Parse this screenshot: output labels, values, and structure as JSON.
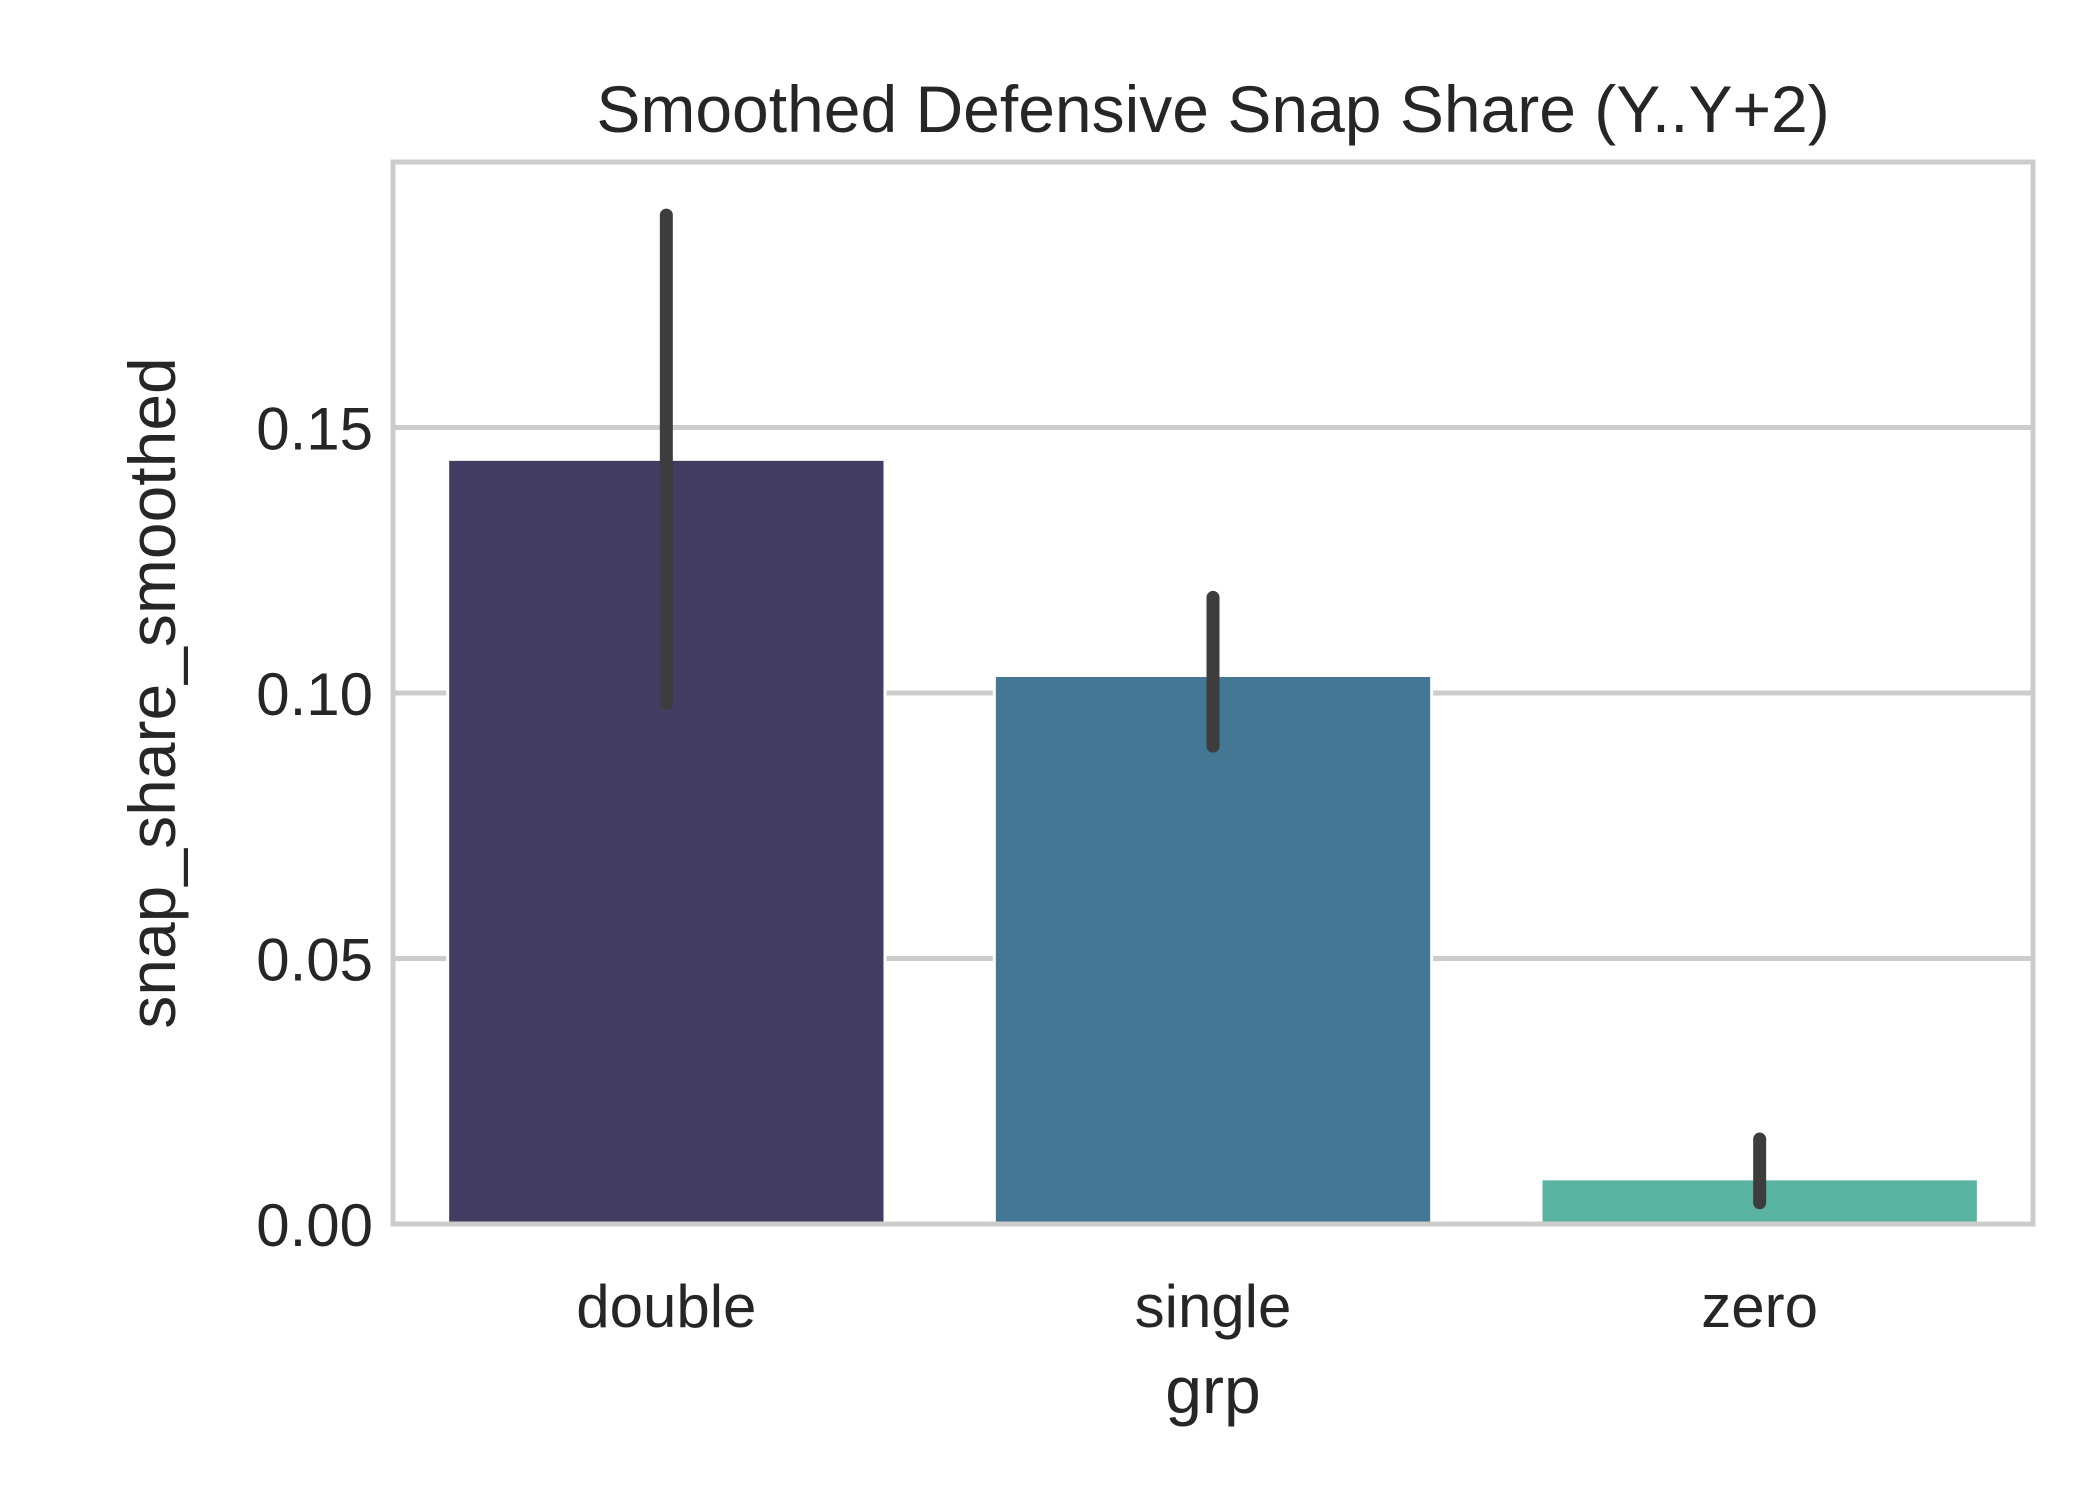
{
  "chart_data": {
    "type": "bar",
    "title": "Smoothed Defensive Snap Share (Y..Y+2)",
    "xlabel": "grp",
    "ylabel": "snap_share_smoothed",
    "categories": [
      "double",
      "single",
      "zero"
    ],
    "values": [
      0.144,
      0.1033,
      0.0085
    ],
    "error_bars": [
      {
        "low": 0.098,
        "high": 0.19
      },
      {
        "low": 0.09,
        "high": 0.118
      },
      {
        "low": 0.004,
        "high": 0.016
      }
    ],
    "colors": [
      "#433c63",
      "#447794",
      "#58b3a1"
    ],
    "error_bar_color": "#3d3d3d",
    "ylim": [
      0,
      0.2
    ],
    "yticks": [
      0.0,
      0.05,
      0.1,
      0.15
    ],
    "ytick_labels": [
      "0.00",
      "0.05",
      "0.10",
      "0.15"
    ],
    "grid": "horizontal",
    "grid_color": "#cccccc",
    "spine_color": "#cccccc",
    "legend": "none"
  }
}
